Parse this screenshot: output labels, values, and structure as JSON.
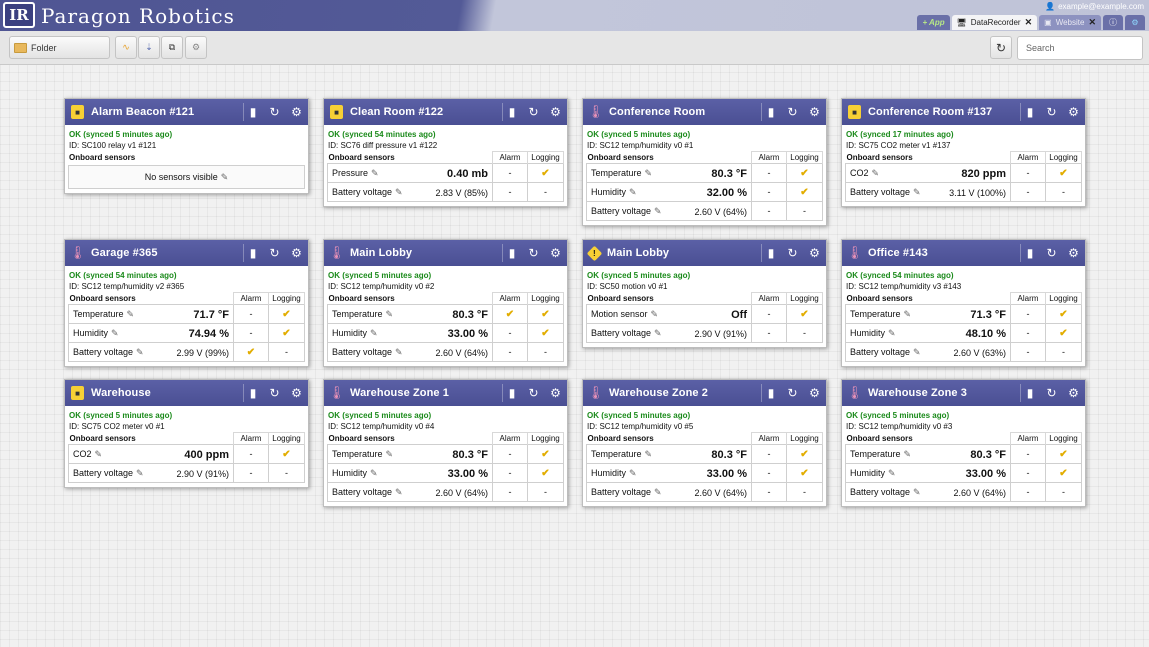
{
  "header": {
    "logo": "IR",
    "brand": "Paragon Robotics",
    "user": "example@example.com",
    "tabs": [
      {
        "label": "+ App"
      },
      {
        "label": "DataRecorder",
        "icon": "monitor-icon"
      },
      {
        "label": "Website",
        "icon": "logo-icon"
      }
    ]
  },
  "toolbar": {
    "folder": "Folder",
    "search_placeholder": "Search"
  },
  "table_headers": {
    "section": "Onboard sensors",
    "alarm": "Alarm",
    "logging": "Logging"
  },
  "cards": [
    {
      "title": "Alarm Beacon #121",
      "icon": "beacon",
      "status": "OK (synced 5 minutes ago)",
      "id": "ID: SC100 relay v1 #121",
      "empty": "No sensors visible",
      "sensors": []
    },
    {
      "title": "Clean Room #122",
      "icon": "beacon",
      "status": "OK (synced 54 minutes ago)",
      "id": "ID: SC76 diff pressure v1 #122",
      "sensors": [
        {
          "name": "Pressure",
          "value": "0.40 mb",
          "big": true,
          "alarm": "-",
          "logging": "✔"
        },
        {
          "name": "Battery voltage",
          "value": "2.83 V (85%)",
          "big": false,
          "alarm": "-",
          "logging": "-"
        }
      ]
    },
    {
      "title": "Conference Room",
      "icon": "thermo",
      "status": "OK (synced 5 minutes ago)",
      "id": "ID: SC12 temp/humidity v0 #1",
      "sensors": [
        {
          "name": "Temperature",
          "value": "80.3 °F",
          "big": true,
          "alarm": "-",
          "logging": "✔"
        },
        {
          "name": "Humidity",
          "value": "32.00 %",
          "big": true,
          "alarm": "-",
          "logging": "✔"
        },
        {
          "name": "Battery voltage",
          "value": "2.60 V (64%)",
          "big": false,
          "alarm": "-",
          "logging": "-"
        }
      ]
    },
    {
      "title": "Conference Room #137",
      "icon": "beacon",
      "status": "OK (synced 17 minutes ago)",
      "id": "ID: SC75 CO2 meter v1 #137",
      "sensors": [
        {
          "name": "CO2",
          "value": "820 ppm",
          "big": true,
          "alarm": "-",
          "logging": "✔"
        },
        {
          "name": "Battery voltage",
          "value": "3.11 V (100%)",
          "big": false,
          "alarm": "-",
          "logging": "-"
        }
      ]
    },
    {
      "title": "Garage #365",
      "icon": "thermo",
      "status": "OK (synced 54 minutes ago)",
      "id": "ID: SC12 temp/humidity v2 #365",
      "sensors": [
        {
          "name": "Temperature",
          "value": "71.7 °F",
          "big": true,
          "alarm": "-",
          "logging": "✔"
        },
        {
          "name": "Humidity",
          "value": "74.94 %",
          "big": true,
          "alarm": "-",
          "logging": "✔"
        },
        {
          "name": "Battery voltage",
          "value": "2.99 V (99%)",
          "big": false,
          "alarm": "✔",
          "logging": "-"
        }
      ]
    },
    {
      "title": "Main Lobby",
      "icon": "thermo",
      "status": "OK (synced 5 minutes ago)",
      "id": "ID: SC12 temp/humidity v0 #2",
      "sensors": [
        {
          "name": "Temperature",
          "value": "80.3 °F",
          "big": true,
          "alarm": "✔",
          "logging": "✔"
        },
        {
          "name": "Humidity",
          "value": "33.00 %",
          "big": true,
          "alarm": "-",
          "logging": "✔"
        },
        {
          "name": "Battery voltage",
          "value": "2.60 V (64%)",
          "big": false,
          "alarm": "-",
          "logging": "-"
        }
      ]
    },
    {
      "title": "Main Lobby",
      "icon": "motion",
      "status": "OK (synced 5 minutes ago)",
      "id": "ID: SC50 motion v0 #1",
      "sensors": [
        {
          "name": "Motion sensor",
          "value": "Off",
          "big": true,
          "alarm": "-",
          "logging": "✔"
        },
        {
          "name": "Battery voltage",
          "value": "2.90 V (91%)",
          "big": false,
          "alarm": "-",
          "logging": "-"
        }
      ]
    },
    {
      "title": "Office #143",
      "icon": "thermo",
      "status": "OK (synced 54 minutes ago)",
      "id": "ID: SC12 temp/humidity v3 #143",
      "sensors": [
        {
          "name": "Temperature",
          "value": "71.3 °F",
          "big": true,
          "alarm": "-",
          "logging": "✔"
        },
        {
          "name": "Humidity",
          "value": "48.10 %",
          "big": true,
          "alarm": "-",
          "logging": "✔"
        },
        {
          "name": "Battery voltage",
          "value": "2.60 V (63%)",
          "big": false,
          "alarm": "-",
          "logging": "-"
        }
      ]
    },
    {
      "title": "Warehouse",
      "icon": "beacon",
      "status": "OK (synced 5 minutes ago)",
      "id": "ID: SC75 CO2 meter v0 #1",
      "sensors": [
        {
          "name": "CO2",
          "value": "400 ppm",
          "big": true,
          "alarm": "-",
          "logging": "✔"
        },
        {
          "name": "Battery voltage",
          "value": "2.90 V (91%)",
          "big": false,
          "alarm": "-",
          "logging": "-"
        }
      ]
    },
    {
      "title": "Warehouse Zone 1",
      "icon": "thermo",
      "status": "OK (synced 5 minutes ago)",
      "id": "ID: SC12 temp/humidity v0 #4",
      "sensors": [
        {
          "name": "Temperature",
          "value": "80.3 °F",
          "big": true,
          "alarm": "-",
          "logging": "✔"
        },
        {
          "name": "Humidity",
          "value": "33.00 %",
          "big": true,
          "alarm": "-",
          "logging": "✔"
        },
        {
          "name": "Battery voltage",
          "value": "2.60 V (64%)",
          "big": false,
          "alarm": "-",
          "logging": "-"
        }
      ]
    },
    {
      "title": "Warehouse Zone 2",
      "icon": "thermo",
      "status": "OK (synced 5 minutes ago)",
      "id": "ID: SC12 temp/humidity v0 #5",
      "sensors": [
        {
          "name": "Temperature",
          "value": "80.3 °F",
          "big": true,
          "alarm": "-",
          "logging": "✔"
        },
        {
          "name": "Humidity",
          "value": "33.00 %",
          "big": true,
          "alarm": "-",
          "logging": "✔"
        },
        {
          "name": "Battery voltage",
          "value": "2.60 V (64%)",
          "big": false,
          "alarm": "-",
          "logging": "-"
        }
      ]
    },
    {
      "title": "Warehouse Zone 3",
      "icon": "thermo",
      "status": "OK (synced 5 minutes ago)",
      "id": "ID: SC12 temp/humidity v0 #3",
      "sensors": [
        {
          "name": "Temperature",
          "value": "80.3 °F",
          "big": true,
          "alarm": "-",
          "logging": "✔"
        },
        {
          "name": "Humidity",
          "value": "33.00 %",
          "big": true,
          "alarm": "-",
          "logging": "✔"
        },
        {
          "name": "Battery voltage",
          "value": "2.60 V (64%)",
          "big": false,
          "alarm": "-",
          "logging": "-"
        }
      ]
    }
  ]
}
